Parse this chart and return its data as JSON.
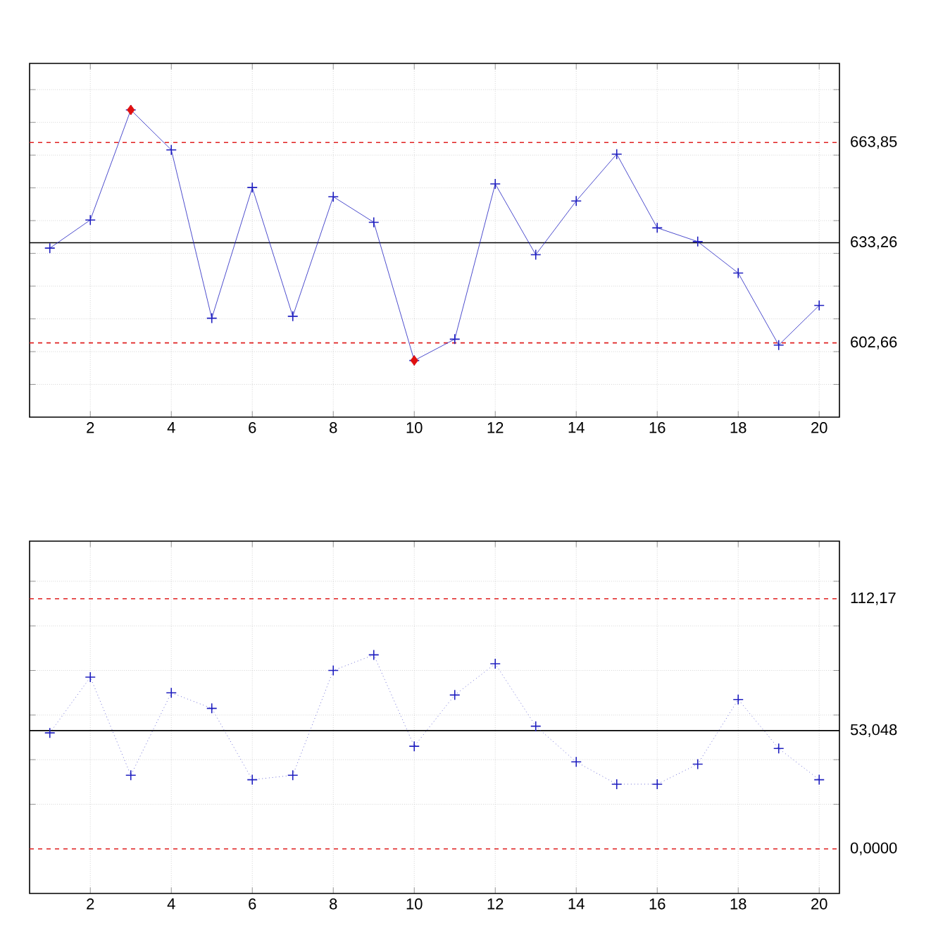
{
  "chart_data": [
    {
      "type": "line",
      "x": [
        1,
        2,
        3,
        4,
        5,
        6,
        7,
        8,
        9,
        10,
        11,
        12,
        13,
        14,
        15,
        16,
        17,
        18,
        19,
        20
      ],
      "xlim": [
        0.5,
        20.5
      ],
      "xticks": [
        2,
        4,
        6,
        8,
        10,
        12,
        14,
        16,
        18,
        20
      ],
      "ylim": [
        580,
        688
      ],
      "grid": true,
      "marker": "cross",
      "yticks": [
        {
          "value": 590,
          "label": null
        },
        {
          "value": 600,
          "label": null
        },
        {
          "value": 610,
          "label": null
        },
        {
          "value": 620,
          "label": null
        },
        {
          "value": 630,
          "label": null
        },
        {
          "value": 640,
          "label": null
        },
        {
          "value": 650,
          "label": null
        },
        {
          "value": 660,
          "label": null
        },
        {
          "value": 670,
          "label": null
        },
        {
          "value": 680,
          "label": null
        }
      ],
      "series": [
        {
          "color": "#2020c0",
          "line_style": "solid",
          "values": [
            631.6,
            640.2,
            673.8,
            661.6,
            610.2,
            650.1,
            610.8,
            647.3,
            639.5,
            597.3,
            603.8,
            651.2,
            629.6,
            646.0,
            660.3,
            637.8,
            633.6,
            624.0,
            602.0,
            614.1
          ]
        },
        {
          "type": "scatter",
          "marker": "diamond",
          "color": "#e01010",
          "x": [
            3,
            10
          ],
          "values": [
            673.8,
            597.3
          ]
        }
      ],
      "ref_lines": [
        {
          "axis": "y",
          "value": 663.85,
          "label": "663,85",
          "color": "#e02020",
          "line_style": "dashed"
        },
        {
          "axis": "y",
          "value": 633.26,
          "label": "633,26",
          "color": "#000000",
          "line_style": "solid"
        },
        {
          "axis": "y",
          "value": 602.66,
          "label": "602,66",
          "color": "#e02020",
          "line_style": "dashed"
        }
      ]
    },
    {
      "type": "line",
      "x": [
        1,
        2,
        3,
        4,
        5,
        6,
        7,
        8,
        9,
        10,
        11,
        12,
        13,
        14,
        15,
        16,
        17,
        18,
        19,
        20
      ],
      "xlim": [
        0.5,
        20.5
      ],
      "xticks": [
        2,
        4,
        6,
        8,
        10,
        12,
        14,
        16,
        18,
        20
      ],
      "ylim": [
        -20,
        138
      ],
      "grid": true,
      "marker": "cross",
      "line_style": "dotted",
      "yticks": [
        {
          "value": 20,
          "label": null
        },
        {
          "value": 40,
          "label": null
        },
        {
          "value": 60,
          "label": null
        },
        {
          "value": 80,
          "label": null
        },
        {
          "value": 100,
          "label": null
        },
        {
          "value": 120,
          "label": null
        }
      ],
      "series": [
        {
          "color": "#2020c0",
          "values": [
            52,
            77,
            33,
            70,
            63,
            31,
            33,
            80,
            87,
            46,
            69,
            83,
            55,
            39,
            29,
            29,
            38,
            67,
            45,
            31
          ]
        }
      ],
      "ref_lines": [
        {
          "axis": "y",
          "value": 112.17,
          "label": "112,17",
          "color": "#e02020",
          "line_style": "dashed"
        },
        {
          "axis": "y",
          "value": 53.048,
          "label": "53,048",
          "color": "#000000",
          "line_style": "solid"
        },
        {
          "axis": "y",
          "value": 0,
          "label": "0,0000",
          "color": "#e02020",
          "line_style": "dashed"
        }
      ]
    }
  ]
}
